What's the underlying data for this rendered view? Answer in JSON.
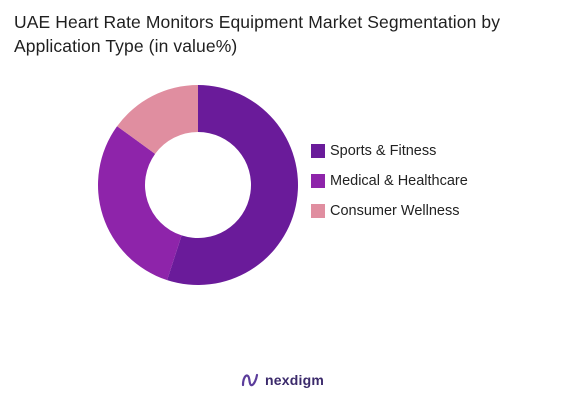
{
  "chart_data": {
    "type": "pie",
    "variant": "donut",
    "title": "UAE Heart Rate Monitors Equipment Market Segmentation by Application Type (in value%)",
    "categories": [
      "Sports & Fitness",
      "Medical & Healthcare",
      "Consumer Wellness"
    ],
    "values": [
      55,
      30,
      15
    ],
    "colors": [
      "#6a1b9a",
      "#8e24aa",
      "#e08ea0"
    ],
    "legend_position": "right"
  },
  "brand": {
    "name": "nexdigm",
    "icon": "nexdigm-logo-icon",
    "color": "#3b2a6b"
  }
}
